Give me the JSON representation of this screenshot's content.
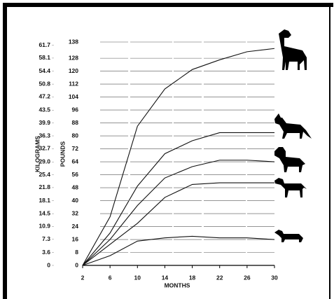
{
  "chart_data": {
    "type": "line",
    "x_label": "MONTHS",
    "y_label": "POUNDS",
    "y2_label": "KILOGRAMS",
    "x": [
      2,
      6,
      10,
      14,
      18,
      22,
      26,
      30
    ],
    "xlim": [
      2,
      30
    ],
    "xticks": [
      2,
      6,
      10,
      14,
      18,
      22,
      26,
      30
    ],
    "ylim": [
      0,
      138
    ],
    "yticks": [
      0,
      8,
      16,
      24,
      32,
      40,
      48,
      56,
      64,
      72,
      80,
      88,
      96,
      104,
      112,
      120,
      128,
      138
    ],
    "y2lim": [
      0,
      62.6
    ],
    "y2ticks": [
      0,
      3.6,
      7.3,
      10.9,
      14.5,
      18.1,
      21.8,
      25.4,
      {
        "value": 29,
        "label": "29.0"
      },
      32.7,
      36.3,
      39.9,
      43.5,
      47.2,
      50.8,
      54.4,
      58.1,
      61.7
    ],
    "grid": true,
    "series": [
      {
        "color": "#111111",
        "values": [
          0,
          30,
          86,
          109,
          121,
          127,
          132,
          134
        ]
      },
      {
        "color": "#111111",
        "values": [
          0,
          20,
          49,
          69,
          77,
          82,
          82,
          82
        ]
      },
      {
        "color": "#111111",
        "values": [
          0,
          16,
          37,
          54,
          61,
          65,
          65,
          64
        ]
      },
      {
        "color": "#111111",
        "values": [
          0,
          13,
          26,
          42,
          50,
          51,
          51,
          51
        ]
      },
      {
        "color": "#111111",
        "values": [
          0,
          6,
          15,
          17,
          18,
          17,
          17,
          16
        ]
      }
    ]
  }
}
